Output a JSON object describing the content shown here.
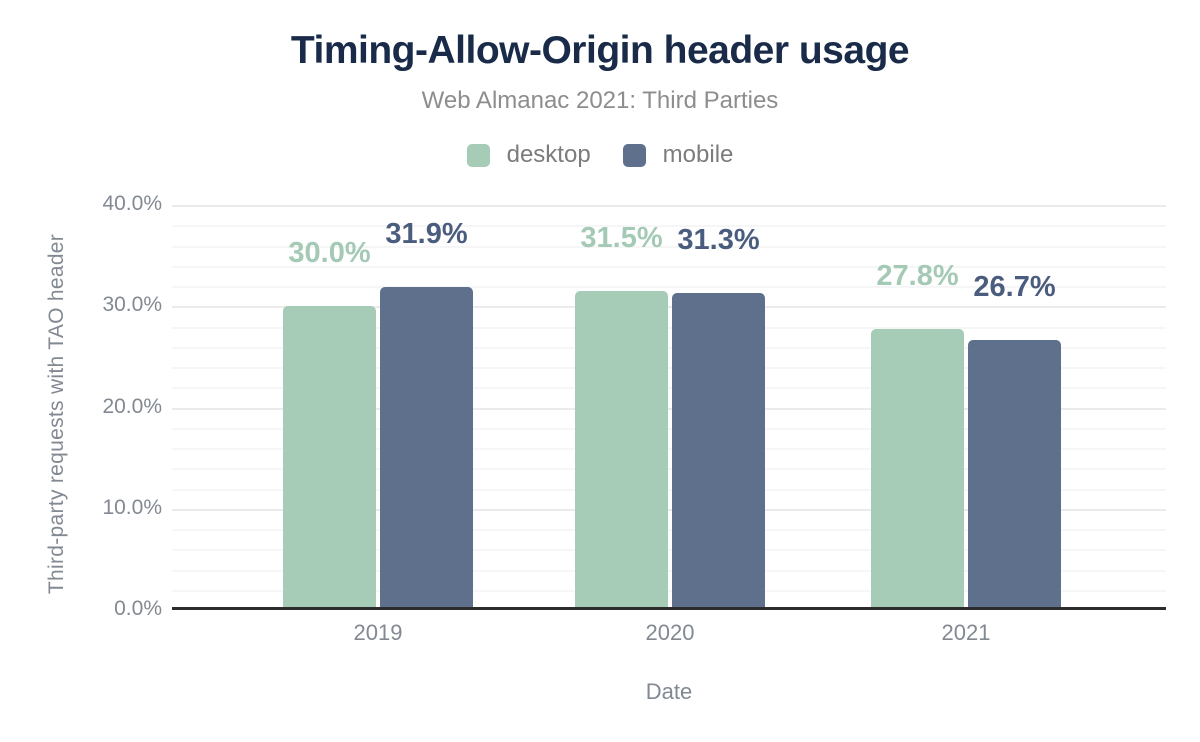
{
  "title": "Timing-Allow-Origin header usage",
  "subtitle": "Web Almanac 2021: Third Parties",
  "colors": {
    "title": "#1a2b49",
    "subtitle": "#8d8d8d",
    "axis_text": "#828992",
    "legend_text": "#7c7c7c",
    "axis_line": "#2d2d2d",
    "desktop": "#a6cbb7",
    "mobile": "#5e708c",
    "desktop_label": "#a4c9b5",
    "mobile_label": "#4b5d7f"
  },
  "legend": [
    {
      "label": "desktop",
      "color": "#a6cbb7"
    },
    {
      "label": "mobile",
      "color": "#5e708c"
    }
  ],
  "chart_data": {
    "type": "bar",
    "title": "Timing-Allow-Origin header usage",
    "subtitle": "Web Almanac 2021: Third Parties",
    "categories": [
      "2019",
      "2020",
      "2021"
    ],
    "series": [
      {
        "name": "desktop",
        "color": "#a6cbb7",
        "label_color": "#a4c9b5",
        "values": [
          30.0,
          31.5,
          27.8
        ],
        "value_labels": [
          "30.0%",
          "31.5%",
          "27.8%"
        ]
      },
      {
        "name": "mobile",
        "color": "#5e708c",
        "label_color": "#4b5d7f",
        "values": [
          31.9,
          31.3,
          26.7
        ],
        "value_labels": [
          "31.9%",
          "31.3%",
          "26.7%"
        ]
      }
    ],
    "xlabel": "Date",
    "ylabel": "Third-party requests with TAO header",
    "ylim": [
      0,
      40
    ],
    "y_tick_values": [
      0,
      10,
      20,
      30,
      40
    ],
    "y_tick_labels": [
      "0.0%",
      "10.0%",
      "20.0%",
      "30.0%",
      "40.0%"
    ],
    "grid": "horizontal: minor lines every 2%, major lines every 10%",
    "legend_position": "top center"
  }
}
